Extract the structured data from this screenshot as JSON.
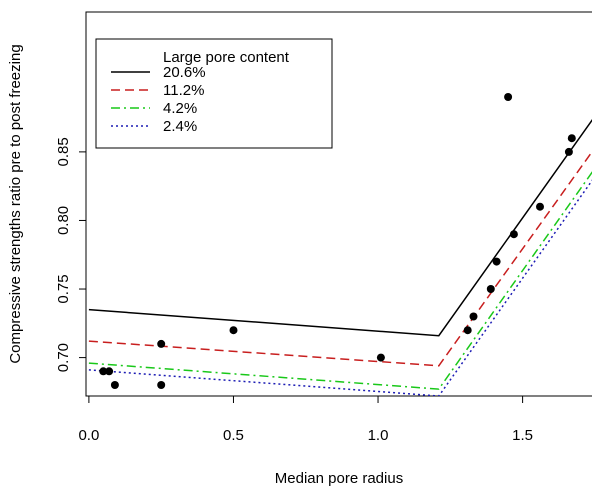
{
  "chart_data": {
    "type": "scatter",
    "title": "",
    "xlabel": "Median pore radius",
    "ylabel": "Compressive strengths ratio pre to post freezing",
    "xlim": [
      -0.01,
      1.74
    ],
    "ylim": [
      0.672,
      0.952
    ],
    "x_ticks": [
      0.0,
      0.5,
      1.0,
      1.5
    ],
    "x_tick_labels": [
      "0.0",
      "0.5",
      "1.0",
      "1.5"
    ],
    "y_ticks": [
      0.7,
      0.75,
      0.8,
      0.85
    ],
    "y_tick_labels": [
      "0.70",
      "0.75",
      "0.80",
      "0.85"
    ],
    "grid": false,
    "legend": {
      "title": "Large pore content",
      "placement": "top-left"
    },
    "points": {
      "x": [
        0.05,
        0.07,
        0.09,
        0.25,
        0.25,
        0.5,
        1.01,
        1.31,
        1.33,
        1.39,
        1.41,
        1.45,
        1.47,
        1.56,
        1.66,
        1.67
      ],
      "y": [
        0.69,
        0.69,
        0.68,
        0.71,
        0.68,
        0.72,
        0.7,
        0.72,
        0.73,
        0.75,
        0.77,
        0.89,
        0.79,
        0.81,
        0.85,
        0.86
      ],
      "color": "#000000"
    },
    "series": [
      {
        "name": "20.6%",
        "color": "#000000",
        "dash": "solid",
        "x": [
          0.0,
          1.21,
          1.75
        ],
        "y": [
          0.735,
          0.716,
          0.876
        ]
      },
      {
        "name": "11.2%",
        "color": "#c81e1e",
        "dash": "dashed",
        "x": [
          0.0,
          1.21,
          1.75
        ],
        "y": [
          0.712,
          0.694,
          0.853
        ]
      },
      {
        "name": "4.2%",
        "color": "#19c819",
        "dash": "dashdot",
        "x": [
          0.0,
          1.21,
          1.75
        ],
        "y": [
          0.696,
          0.677,
          0.838
        ]
      },
      {
        "name": "2.4%",
        "color": "#1c1cb4",
        "dash": "dotted",
        "x": [
          0.0,
          1.21,
          1.75
        ],
        "y": [
          0.691,
          0.672,
          0.832
        ]
      }
    ]
  }
}
